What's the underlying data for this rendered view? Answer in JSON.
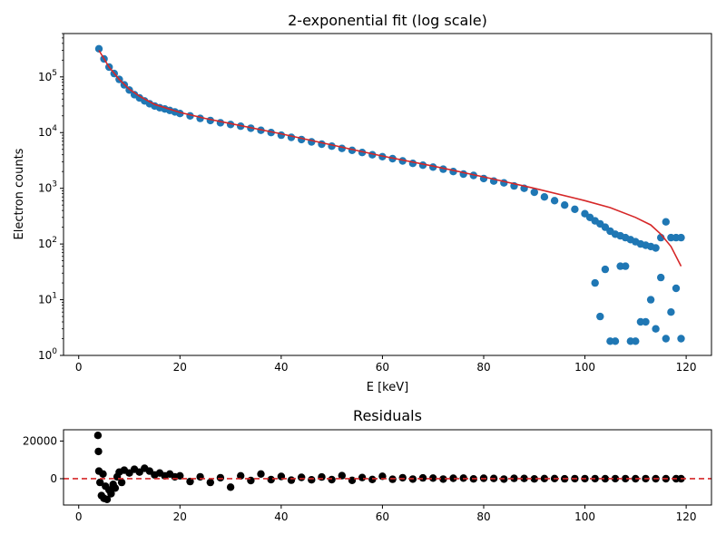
{
  "chart_data": [
    {
      "type": "scatter",
      "title": "2-exponential fit (log scale)",
      "xlabel": "E [keV]",
      "ylabel": "Electron counts",
      "yscale": "log",
      "xlim": [
        -3,
        125
      ],
      "ylim": [
        1,
        600000
      ],
      "x_ticks": [
        "0",
        "20",
        "40",
        "60",
        "80",
        "100",
        "120"
      ],
      "x_tick_values": [
        0,
        20,
        40,
        60,
        80,
        100,
        120
      ],
      "y_ticks": [
        {
          "base": "10",
          "exp": "0",
          "value": 1
        },
        {
          "base": "10",
          "exp": "1",
          "value": 10
        },
        {
          "base": "10",
          "exp": "2",
          "value": 100
        },
        {
          "base": "10",
          "exp": "3",
          "value": 1000
        },
        {
          "base": "10",
          "exp": "4",
          "value": 10000
        },
        {
          "base": "10",
          "exp": "5",
          "value": 100000
        }
      ],
      "grid": false,
      "series": [
        {
          "style": "points",
          "color": "#1f77b4",
          "x": [
            4,
            5,
            6,
            7,
            8,
            9,
            10,
            11,
            12,
            13,
            14,
            15,
            16,
            17,
            18,
            19,
            20,
            22,
            24,
            26,
            28,
            30,
            32,
            34,
            36,
            38,
            40,
            42,
            44,
            46,
            48,
            50,
            52,
            54,
            56,
            58,
            60,
            62,
            64,
            66,
            68,
            70,
            72,
            74,
            76,
            78,
            80,
            82,
            84,
            86,
            88,
            90,
            92,
            94,
            96,
            98,
            100,
            101,
            102,
            103,
            104,
            105,
            106,
            107,
            108,
            109,
            110,
            111,
            112,
            113,
            114,
            115,
            116,
            117,
            118,
            119
          ],
          "y": [
            320000,
            210000,
            150000,
            115000,
            90000,
            72000,
            58000,
            48000,
            42000,
            37000,
            33000,
            30000,
            28000,
            26500,
            25000,
            23500,
            22000,
            20000,
            18000,
            16500,
            15000,
            14000,
            13000,
            12000,
            11000,
            10000,
            9000,
            8200,
            7500,
            6800,
            6200,
            5700,
            5200,
            4800,
            4400,
            4000,
            3700,
            3400,
            3100,
            2800,
            2600,
            2400,
            2200,
            2000,
            1800,
            1700,
            1500,
            1350,
            1250,
            1100,
            1000,
            850,
            700,
            600,
            500,
            420,
            350,
            300,
            260,
            230,
            200,
            170,
            150,
            140,
            130,
            120,
            110,
            100,
            95,
            90,
            85,
            130,
            250,
            130,
            130,
            130
          ]
        },
        {
          "style": "points",
          "color": "#1f77b4",
          "x": [
            102,
            103,
            104,
            105,
            106,
            107,
            108,
            109,
            110,
            111,
            112,
            113,
            114,
            115,
            116,
            117,
            118,
            119
          ],
          "y": [
            20,
            5,
            35,
            1.8,
            1.8,
            40,
            40,
            1.8,
            1.8,
            4,
            4,
            10,
            3,
            25,
            2,
            6,
            16,
            2
          ]
        },
        {
          "style": "line",
          "color": "#d62728",
          "x": [
            4,
            6,
            8,
            10,
            12,
            15,
            20,
            25,
            30,
            40,
            50,
            60,
            70,
            80,
            90,
            100,
            105,
            110,
            113,
            115,
            117,
            119
          ],
          "y": [
            300000,
            150000,
            90000,
            60000,
            45000,
            32000,
            23000,
            18000,
            14500,
            9500,
            6000,
            3800,
            2500,
            1600,
            1000,
            600,
            450,
            300,
            220,
            150,
            90,
            40
          ]
        }
      ]
    },
    {
      "type": "scatter",
      "title": "Residuals",
      "xlabel": "",
      "ylabel": "",
      "xlim": [
        -3,
        125
      ],
      "ylim": [
        -14000,
        26000
      ],
      "x_ticks": [
        "0",
        "20",
        "40",
        "60",
        "80",
        "100",
        "120"
      ],
      "x_tick_values": [
        0,
        20,
        40,
        60,
        80,
        100,
        120
      ],
      "y_ticks": [
        "0",
        "20000"
      ],
      "y_tick_values": [
        0,
        20000
      ],
      "grid": false,
      "reference_line": {
        "y": 0,
        "color": "#d62728",
        "style": "dashed"
      },
      "series": [
        {
          "style": "points",
          "color": "#000000",
          "x": [
            3.8,
            3.9,
            4.0,
            4.2,
            4.5,
            4.8,
            5.0,
            5.3,
            5.6,
            6.0,
            6.4,
            6.8,
            7.2,
            7.6,
            8.0,
            8.5,
            9.0,
            10,
            11,
            12,
            13,
            14,
            15,
            16,
            17,
            18,
            19,
            20,
            22,
            24,
            26,
            28,
            30,
            32,
            34,
            36,
            38,
            40,
            42,
            44,
            46,
            48,
            50,
            52,
            54,
            56,
            58,
            60,
            62,
            64,
            66,
            68,
            70,
            72,
            74,
            76,
            78,
            80,
            82,
            84,
            86,
            88,
            90,
            92,
            94,
            96,
            98,
            100,
            102,
            104,
            106,
            108,
            110,
            112,
            114,
            116,
            118,
            119
          ],
          "y": [
            23000,
            14500,
            4000,
            -2000,
            -9000,
            2500,
            -10500,
            -4000,
            -11000,
            -6000,
            -8000,
            -3000,
            -5000,
            1000,
            3500,
            -2000,
            4500,
            3000,
            5000,
            3500,
            5500,
            4000,
            2000,
            3000,
            1500,
            2500,
            1000,
            1500,
            -1500,
            1000,
            -2000,
            500,
            -4500,
            1500,
            -1000,
            2500,
            -500,
            1200,
            -800,
            700,
            -600,
            900,
            -500,
            1600,
            -900,
            600,
            -400,
            1300,
            -300,
            500,
            -200,
            400,
            300,
            -200,
            200,
            300,
            -100,
            200,
            100,
            -200,
            150,
            100,
            -100,
            80,
            60,
            -50,
            40,
            30,
            20,
            -20,
            10,
            10,
            0,
            5,
            -5,
            0,
            0,
            0
          ]
        }
      ]
    }
  ]
}
